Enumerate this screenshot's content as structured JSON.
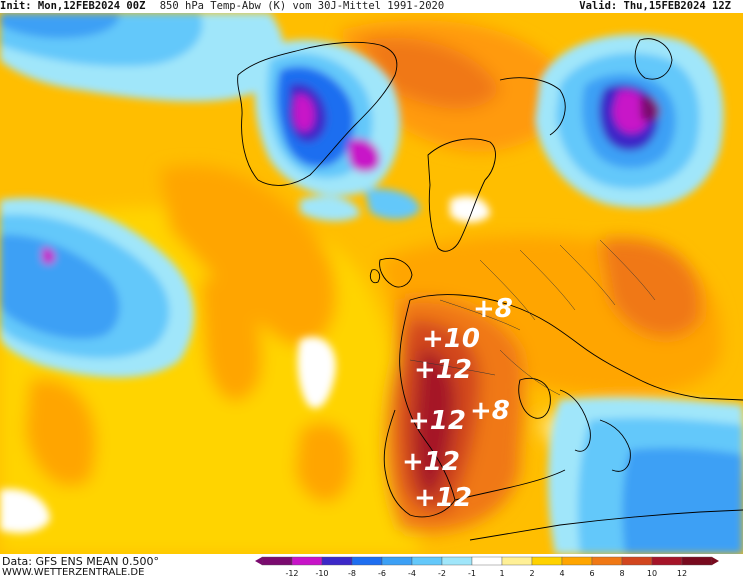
{
  "header": {
    "init": "Init: Mon,12FEB2024 00Z",
    "title": "850 hPa Temp-Abw (K) vom 30J-Mittel 1991-2020",
    "valid": "Valid: Thu,15FEB2024 12Z"
  },
  "footer": {
    "data_source": "Data: GFS ENS MEAN 0.500°",
    "website": "WWW.WETTERZENTRALE.DE"
  },
  "colorbar": {
    "ticks": [
      "-12",
      "-10",
      "-8",
      "-6",
      "-4",
      "-2",
      "-1",
      "1",
      "2",
      "4",
      "6",
      "8",
      "10",
      "12"
    ],
    "colors": [
      "#7a0a6e",
      "#c814c8",
      "#3c28c8",
      "#1e6ef0",
      "#3ca0f5",
      "#64c8fa",
      "#a0e6fa",
      "#ffffff",
      "#fff096",
      "#ffd200",
      "#ffa500",
      "#f07814",
      "#d2461e",
      "#a51428",
      "#780a1e"
    ]
  },
  "annotations": [
    {
      "text": "+8",
      "key": "a1"
    },
    {
      "text": "+10",
      "key": "a2"
    },
    {
      "text": "+12",
      "key": "a3"
    },
    {
      "text": "+12",
      "key": "a4"
    },
    {
      "text": "+8",
      "key": "a5"
    },
    {
      "text": "+12",
      "key": "a6"
    },
    {
      "text": "+12",
      "key": "a7"
    }
  ]
}
